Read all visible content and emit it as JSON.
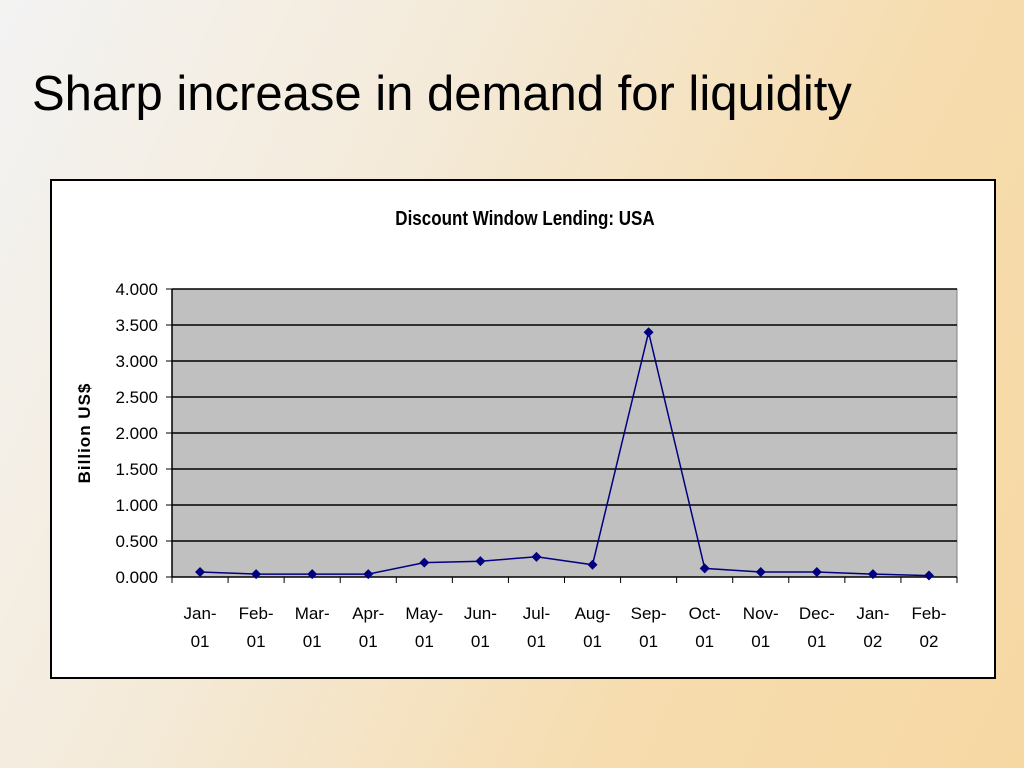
{
  "slide": {
    "title": "Sharp increase in demand for liquidity"
  },
  "colors": {
    "plot_background": "#c0c0c0",
    "series_line": "#000080",
    "gridline": "#000000"
  },
  "chart_data": {
    "type": "line",
    "title": "Discount Window Lending: USA",
    "xlabel": "",
    "ylabel": "Billion US$",
    "categories": [
      [
        "Jan-",
        "01"
      ],
      [
        "Feb-",
        "01"
      ],
      [
        "Mar-",
        "01"
      ],
      [
        "Apr-",
        "01"
      ],
      [
        "May-",
        "01"
      ],
      [
        "Jun-",
        "01"
      ],
      [
        "Jul-",
        "01"
      ],
      [
        "Aug-",
        "01"
      ],
      [
        "Sep-",
        "01"
      ],
      [
        "Oct-",
        "01"
      ],
      [
        "Nov-",
        "01"
      ],
      [
        "Dec-",
        "01"
      ],
      [
        "Jan-",
        "02"
      ],
      [
        "Feb-",
        "02"
      ]
    ],
    "series": [
      {
        "values": [
          0.07,
          0.04,
          0.04,
          0.04,
          0.2,
          0.22,
          0.28,
          0.17,
          3.4,
          0.12,
          0.07,
          0.07,
          0.04,
          0.02
        ]
      }
    ],
    "ylim": [
      0,
      4
    ],
    "ytick_step": 0.5,
    "ytick_labels": [
      "0.000",
      "0.500",
      "1.000",
      "1.500",
      "2.000",
      "2.500",
      "3.000",
      "3.500",
      "4.000"
    ],
    "grid": true,
    "legend": "none",
    "marker": "diamond"
  }
}
